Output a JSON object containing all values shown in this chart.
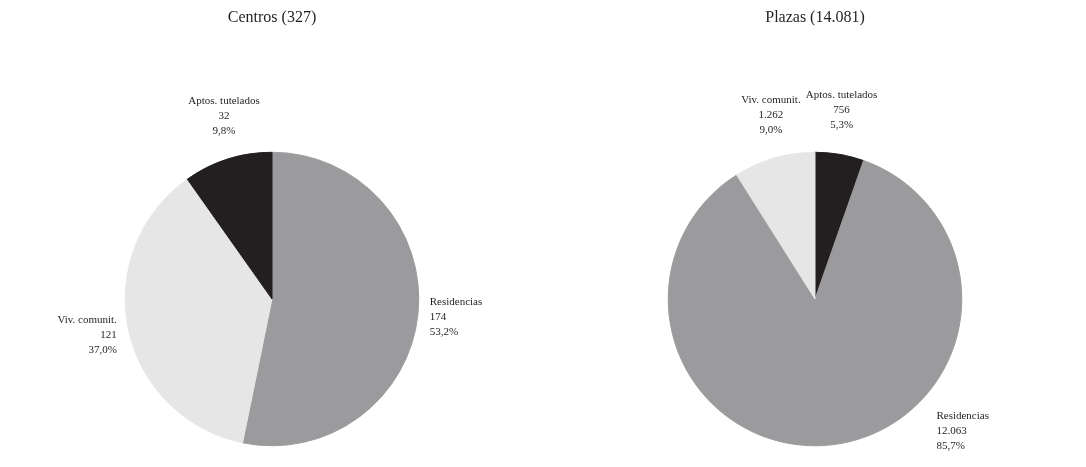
{
  "chart_data": [
    {
      "type": "pie",
      "title": "Centros (327)",
      "categories": [
        "Residencias",
        "Viv. comunit.",
        "Aptos. tutelados"
      ],
      "values": [
        174,
        121,
        32
      ],
      "colors": [
        "#9b9b9d",
        "#e6e6e6",
        "#231f20"
      ],
      "value_labels": [
        "174\n53,2%",
        "121\n37,0%",
        "32\n9,8%"
      ]
    },
    {
      "type": "pie",
      "title": "Plazas (14.081)",
      "categories": [
        "Aptos. tutelados",
        "Residencias",
        "Viv. comunit."
      ],
      "values": [
        756,
        12063,
        1262
      ],
      "colors": [
        "#231f20",
        "#9b9b9d",
        "#e6e6e6"
      ],
      "value_labels": [
        "756\n5,3%",
        "12.063\n85,7%",
        "1.262\n9,0%"
      ]
    }
  ]
}
